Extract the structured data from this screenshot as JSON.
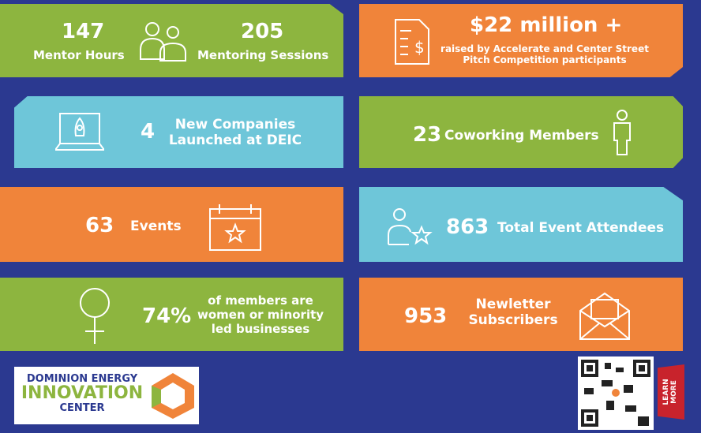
{
  "cards": [
    {
      "stats": [
        {
          "number": "147",
          "label": "Mentor Hours"
        },
        {
          "number": "205",
          "label": "Mentoring Sessions"
        }
      ]
    },
    {
      "number": "$22 million +",
      "lines": [
        "raised by Accelerate and Center Street",
        "Pitch Competition participants"
      ]
    },
    {
      "number": "4",
      "lines": [
        "New Companies",
        "Launched at DEIC"
      ]
    },
    {
      "number": "23",
      "label": "Coworking Members"
    },
    {
      "number": "63",
      "label": "Events"
    },
    {
      "number": "863",
      "label": "Total Event Attendees"
    },
    {
      "number": "74%",
      "lines": [
        "of members are",
        "women or minority",
        "led businesses"
      ]
    },
    {
      "number": "953",
      "lines": [
        "Newletter",
        "Subscribers"
      ]
    }
  ],
  "logo": {
    "lines": [
      "DOMINION ENERGY",
      "INNOVATION",
      "CENTER"
    ]
  },
  "tag": {
    "lines": [
      "LEARN",
      "MORE"
    ]
  }
}
